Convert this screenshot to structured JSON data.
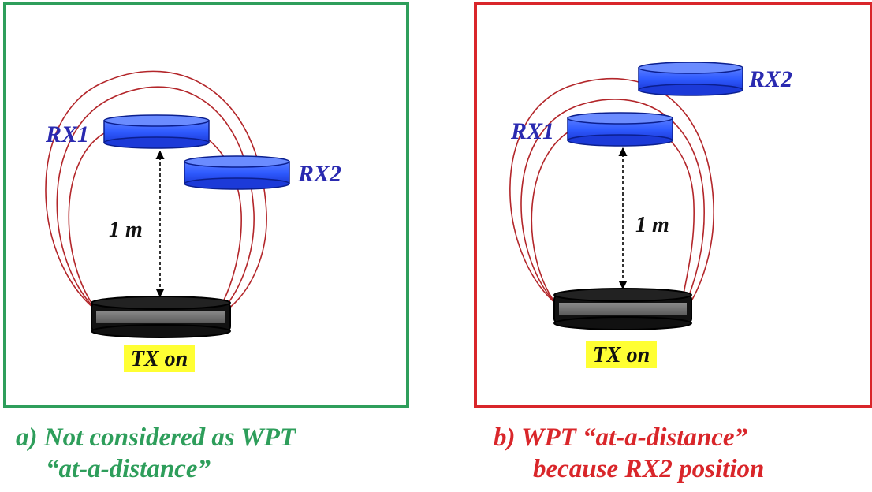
{
  "panels": [
    {
      "id": "a",
      "border_color": "#2e9e5b",
      "rx1_label": "RX1",
      "rx2_label": "RX2",
      "distance_label": "1 m",
      "tx_label": "TX on",
      "caption_line1": "a) Not considered as WPT",
      "caption_line2": "“at-a-distance”",
      "caption_color": "#2e9e5b"
    },
    {
      "id": "b",
      "border_color": "#d9262a",
      "rx1_label": "RX1",
      "rx2_label": "RX2",
      "distance_label": "1 m",
      "tx_label": "TX on",
      "caption_line1": "b) WPT “at-a-distance”",
      "caption_line2": "because RX2 position",
      "caption_color": "#d9262a"
    }
  ],
  "colors": {
    "receiver_fill": "#2f5bff",
    "receiver_label": "#2a2ab0",
    "transmitter_fill": "#111111",
    "field_lines": "#b3262a",
    "tx_highlight": "#ffff33"
  }
}
